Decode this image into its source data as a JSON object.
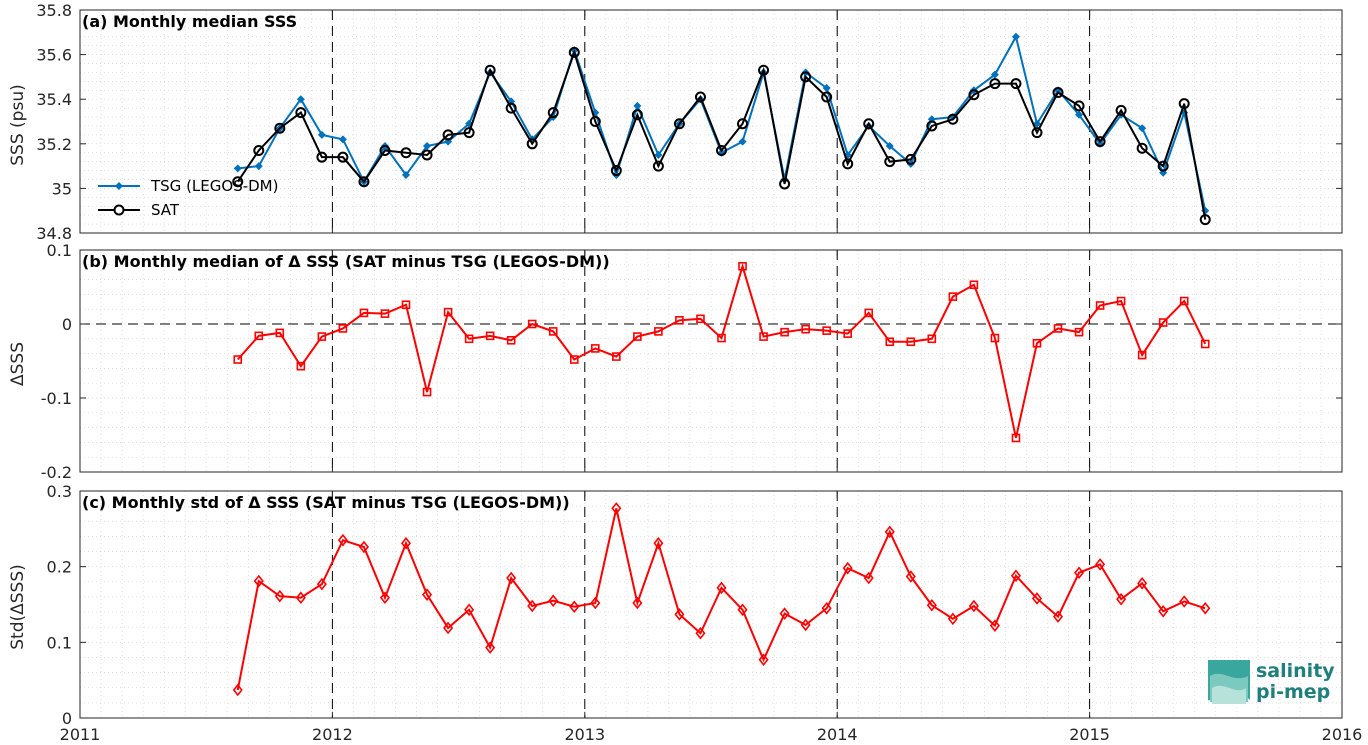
{
  "chart_data": [
    {
      "type": "line",
      "title": "(a) Monthly median SSS",
      "ylabel": "SSS (psu)",
      "xlabel": "",
      "xlim": [
        2011,
        2016
      ],
      "ylim": [
        34.8,
        35.8
      ],
      "yticks": [
        "34.8",
        "35",
        "35.2",
        "35.4",
        "35.6",
        "35.8"
      ],
      "xticks": [
        "2011",
        "2012",
        "2013",
        "2014",
        "2015",
        "2016"
      ],
      "grid": "minor dotted",
      "legend_placement": "left",
      "x_first": 2011.625,
      "x_step": 0.08333,
      "series": [
        {
          "name": "TSG (LEGOS-DM)",
          "color": "#0072bd",
          "marker": "filled-diamond",
          "values": [
            35.09,
            35.1,
            35.27,
            35.4,
            35.24,
            35.22,
            35.03,
            35.19,
            35.06,
            35.19,
            35.21,
            35.29,
            35.52,
            35.39,
            35.22,
            35.32,
            35.62,
            35.34,
            35.06,
            35.37,
            35.15,
            35.29,
            35.4,
            35.16,
            35.21,
            35.52,
            35.04,
            35.52,
            35.45,
            35.15,
            35.28,
            35.19,
            35.11,
            35.31,
            35.32,
            35.44,
            35.51,
            35.68,
            35.29,
            35.44,
            35.33,
            35.2,
            35.33,
            35.27,
            35.07,
            35.34,
            34.9
          ]
        },
        {
          "name": "SAT",
          "color": "#000000",
          "marker": "open-circle",
          "values": [
            35.03,
            35.17,
            35.27,
            35.34,
            35.14,
            35.14,
            35.03,
            35.17,
            35.16,
            35.15,
            35.24,
            35.25,
            35.53,
            35.36,
            35.2,
            35.34,
            35.61,
            35.3,
            35.08,
            35.33,
            35.1,
            35.29,
            35.41,
            35.17,
            35.29,
            35.53,
            35.02,
            35.5,
            35.41,
            35.11,
            35.29,
            35.12,
            35.13,
            35.28,
            35.31,
            35.42,
            35.47,
            35.47,
            35.25,
            35.43,
            35.37,
            35.21,
            35.35,
            35.18,
            35.1,
            35.38,
            34.86
          ]
        }
      ]
    },
    {
      "type": "line",
      "title": "(b) Monthly median of Δ SSS (SAT minus TSG (LEGOS-DM))",
      "ylabel": "ΔSSS",
      "xlabel": "",
      "xlim": [
        2011,
        2016
      ],
      "ylim": [
        -0.2,
        0.1
      ],
      "yticks": [
        "-0.2",
        "-0.1",
        "0",
        "0.1"
      ],
      "zero_line": true,
      "x_first": 2011.625,
      "x_step": 0.08333,
      "series": [
        {
          "color": "#ff0000",
          "marker": "open-square",
          "values": [
            -0.048,
            -0.016,
            -0.012,
            -0.057,
            -0.017,
            -0.006,
            0.015,
            0.014,
            0.026,
            -0.092,
            0.016,
            -0.02,
            -0.016,
            -0.022,
            0.0,
            -0.01,
            -0.048,
            -0.033,
            -0.044,
            -0.017,
            -0.01,
            0.005,
            0.007,
            -0.019,
            0.078,
            -0.017,
            -0.011,
            -0.007,
            -0.009,
            -0.013,
            0.015,
            -0.024,
            -0.024,
            -0.02,
            0.037,
            0.053,
            -0.019,
            -0.154,
            -0.026,
            -0.006,
            -0.011,
            0.025,
            0.031,
            -0.042,
            0.002,
            0.031,
            -0.027
          ]
        }
      ]
    },
    {
      "type": "line",
      "title": "(c) Monthly std of Δ SSS (SAT minus TSG (LEGOS-DM))",
      "ylabel": "Std(ΔSSS)",
      "xlabel": "",
      "xlim": [
        2011,
        2016
      ],
      "ylim": [
        0,
        0.3
      ],
      "yticks": [
        "0",
        "0.1",
        "0.2",
        "0.3"
      ],
      "x_first": 2011.625,
      "x_step": 0.08333,
      "series": [
        {
          "color": "#ff0000",
          "marker": "open-diamond",
          "values": [
            0.037,
            0.181,
            0.161,
            0.159,
            0.177,
            0.235,
            0.226,
            0.159,
            0.231,
            0.163,
            0.119,
            0.143,
            0.093,
            0.185,
            0.148,
            0.155,
            0.147,
            0.152,
            0.277,
            0.152,
            0.231,
            0.137,
            0.112,
            0.172,
            0.143,
            0.077,
            0.138,
            0.123,
            0.145,
            0.198,
            0.185,
            0.246,
            0.187,
            0.149,
            0.131,
            0.148,
            0.122,
            0.188,
            0.158,
            0.134,
            0.192,
            0.203,
            0.157,
            0.178,
            0.141,
            0.154,
            0.145
          ]
        }
      ]
    }
  ],
  "logo": {
    "line1": "salinity",
    "line2": "pi-mep",
    "color": "#1f7f7c"
  }
}
